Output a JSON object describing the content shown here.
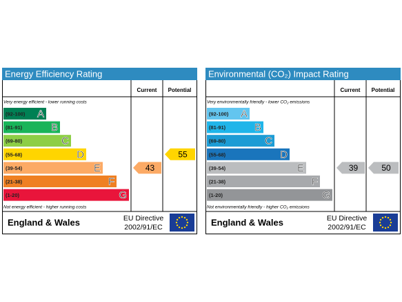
{
  "panels": [
    {
      "title": "Energy Efficiency Rating",
      "columns": [
        "Current",
        "Potential"
      ],
      "top_note": "Very energy efficient - lower running costs",
      "bottom_note": "Not energy efficient - higher running costs",
      "bands": [
        {
          "range": "(92-100)",
          "letter": "A",
          "color": "#008054"
        },
        {
          "range": "(81-91)",
          "letter": "B",
          "color": "#19b459"
        },
        {
          "range": "(69-80)",
          "letter": "C",
          "color": "#8dce46"
        },
        {
          "range": "(55-68)",
          "letter": "D",
          "color": "#ffd500"
        },
        {
          "range": "(39-54)",
          "letter": "E",
          "color": "#fcaa65"
        },
        {
          "range": "(21-38)",
          "letter": "F",
          "color": "#ef8023"
        },
        {
          "range": "(1-20)",
          "letter": "G",
          "color": "#e9153b"
        }
      ],
      "current": 43,
      "potential": 55,
      "region": "England & Wales",
      "directive": [
        "EU Directive",
        "2002/91/EC"
      ]
    },
    {
      "title": "Environmental (CO₂) Impact Rating",
      "columns": [
        "Current",
        "Potential"
      ],
      "top_note": "Very environmentally friendly - lower CO₂ emissions",
      "bottom_note": "Not environmentally friendly - higher CO₂ emissions",
      "bands": [
        {
          "range": "(92-100)",
          "letter": "A",
          "color": "#63c5ef"
        },
        {
          "range": "(81-91)",
          "letter": "B",
          "color": "#1fb5e9"
        },
        {
          "range": "(69-80)",
          "letter": "C",
          "color": "#1c9cd5"
        },
        {
          "range": "(55-68)",
          "letter": "D",
          "color": "#1a75bc"
        },
        {
          "range": "(39-54)",
          "letter": "E",
          "color": "#bbbdbf"
        },
        {
          "range": "(21-38)",
          "letter": "F",
          "color": "#a7a9ac"
        },
        {
          "range": "(1-20)",
          "letter": "G",
          "color": "#939598"
        }
      ],
      "current": 39,
      "potential": 50,
      "region": "England & Wales",
      "directive": [
        "EU Directive",
        "2002/91/EC"
      ]
    }
  ]
}
